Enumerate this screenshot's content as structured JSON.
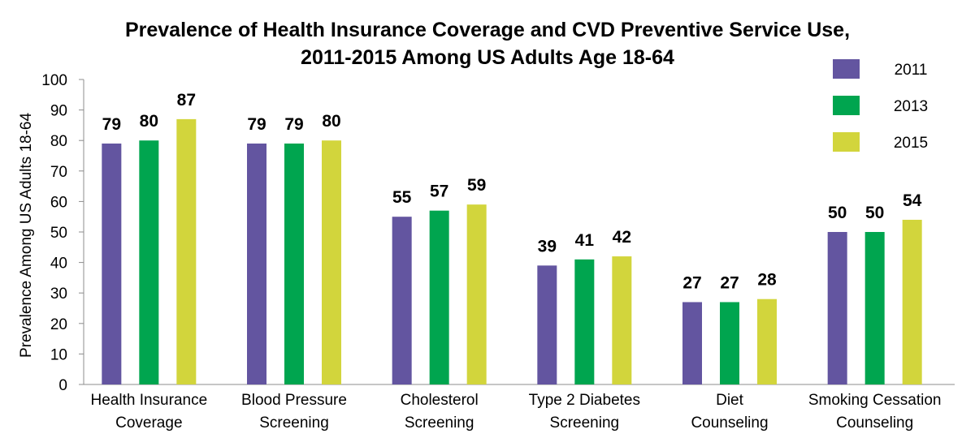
{
  "chart_data": {
    "type": "bar",
    "title": "Prevalence of Health Insurance Coverage and CVD Preventive Service Use, 2011-2015 Among US Adults Age 18-64",
    "title_lines": [
      "Prevalence of Health Insurance Coverage and CVD Preventive Service Use,",
      "2011-2015 Among US Adults Age 18-64"
    ],
    "ylabel": "Prevalence Among US Adults 18-64",
    "xlabel": "",
    "ylim": [
      0,
      100
    ],
    "yticks": [
      0,
      10,
      20,
      30,
      40,
      50,
      60,
      70,
      80,
      90,
      100
    ],
    "grid": false,
    "legend_position": "top-right",
    "categories": [
      [
        "Health Insurance",
        "Coverage"
      ],
      [
        "Blood Pressure",
        "Screening"
      ],
      [
        "Cholesterol",
        "Screening"
      ],
      [
        "Type 2 Diabetes",
        "Screening"
      ],
      [
        "Diet",
        "Counseling"
      ],
      [
        "Smoking Cessation",
        "Counseling"
      ]
    ],
    "series": [
      {
        "name": "2011",
        "color": "#6355a0",
        "values": [
          79,
          79,
          55,
          39,
          27,
          50
        ]
      },
      {
        "name": "2013",
        "color": "#00a54f",
        "values": [
          80,
          79,
          57,
          41,
          27,
          50
        ]
      },
      {
        "name": "2015",
        "color": "#d2d53c",
        "values": [
          87,
          80,
          59,
          42,
          28,
          54
        ]
      }
    ]
  }
}
